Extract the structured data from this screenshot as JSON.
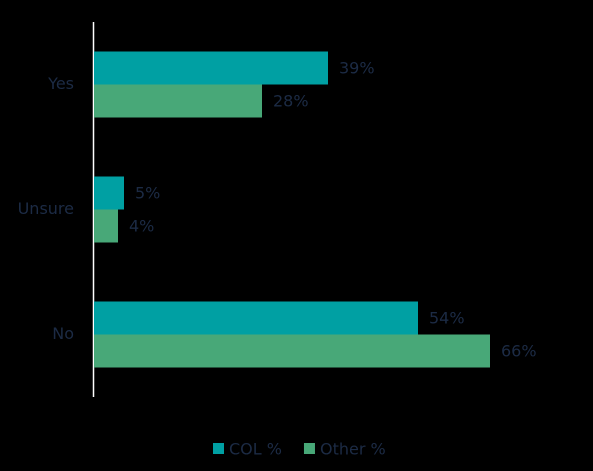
{
  "chart_data": {
    "type": "hbar",
    "categories": [
      "Yes",
      "Unsure",
      "No"
    ],
    "series": [
      {
        "name": "COL %",
        "color": "#00a0a3",
        "values": [
          39,
          5,
          54
        ],
        "value_labels": [
          "39%",
          "5%",
          "54%"
        ]
      },
      {
        "name": "Other %",
        "color": "#48a878",
        "values": [
          28,
          4,
          66
        ],
        "value_labels": [
          "28%",
          "4%",
          "66%"
        ]
      }
    ],
    "legend": "bottom"
  }
}
